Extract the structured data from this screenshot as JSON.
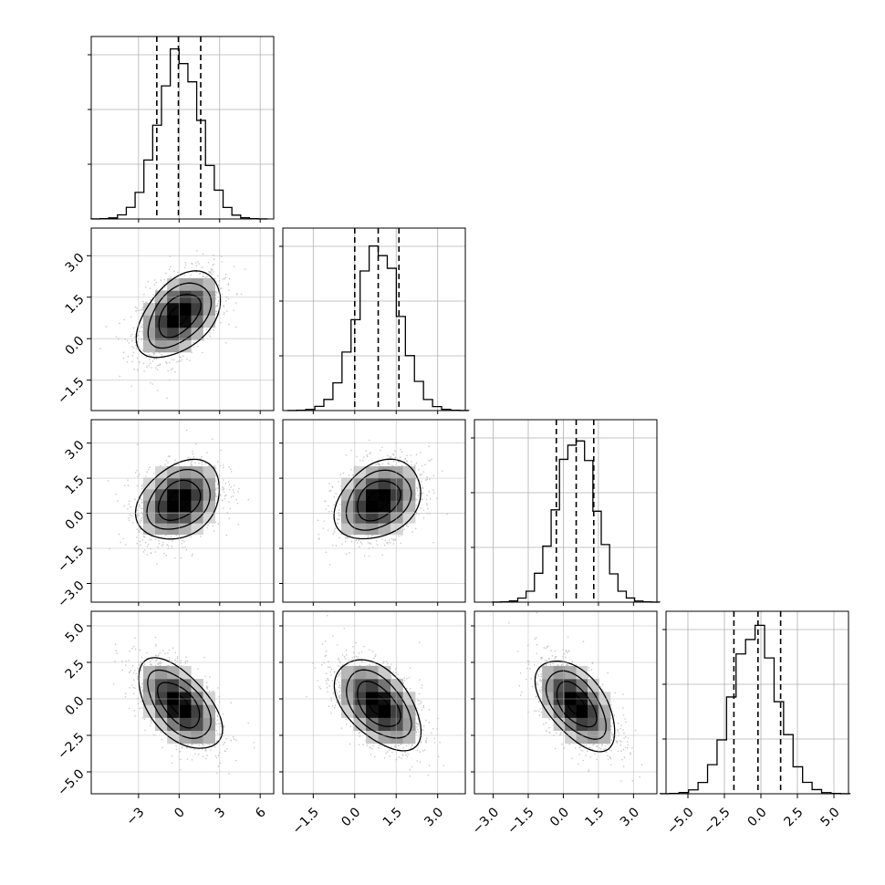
{
  "chart_data": {
    "type": "corner",
    "n_params": 4,
    "grid": true,
    "quantiles": [
      0.16,
      0.5,
      0.84
    ],
    "params": [
      {
        "range": [
          -6.5,
          7.0
        ],
        "ticks": [
          -3,
          0,
          3,
          6
        ],
        "tick_labels": [
          "−3",
          "0",
          "3",
          "6"
        ],
        "marginal": {
          "mean": 0.0,
          "sd": 1.55
        },
        "quantile_lines": [
          -1.65,
          -0.05,
          1.6
        ]
      },
      {
        "range": [
          -2.6,
          4.0
        ],
        "ticks": [
          -1.5,
          0.0,
          1.5,
          3.0
        ],
        "tick_labels": [
          "−1.5",
          "0.0",
          "1.5",
          "3.0"
        ],
        "marginal": {
          "mean": 0.85,
          "sd": 0.78
        },
        "quantile_lines": [
          0.0,
          0.85,
          1.6
        ]
      },
      {
        "range": [
          -3.8,
          4.0
        ],
        "ticks": [
          -3.0,
          -1.5,
          0.0,
          1.5,
          3.0
        ],
        "tick_labels": [
          "−3.0",
          "−1.5",
          "0.0",
          "1.5",
          "3.0"
        ],
        "marginal": {
          "mean": 0.55,
          "sd": 0.85
        },
        "quantile_lines": [
          -0.3,
          0.55,
          1.3
        ]
      },
      {
        "range": [
          -6.5,
          6.0
        ],
        "ticks": [
          -5.0,
          -2.5,
          0.0,
          2.5,
          5.0
        ],
        "tick_labels": [
          "−5.0",
          "−2.5",
          "0.0",
          "2.5",
          "5.0"
        ],
        "marginal": {
          "mean": -0.4,
          "sd": 1.55
        },
        "quantile_lines": [
          -1.85,
          -0.2,
          1.35
        ]
      }
    ],
    "correlations": [
      {
        "i": 1,
        "j": 0,
        "rho": 0.45
      },
      {
        "i": 2,
        "j": 0,
        "rho": 0.3
      },
      {
        "i": 2,
        "j": 1,
        "rho": 0.3
      },
      {
        "i": 3,
        "j": 0,
        "rho": -0.55
      },
      {
        "i": 3,
        "j": 1,
        "rho": -0.5
      },
      {
        "i": 3,
        "j": 2,
        "rho": -0.55
      }
    ],
    "contour_levels_sigma": [
      0.5,
      1.0,
      1.5,
      2.0
    ],
    "colors": {
      "line": "#000000",
      "points": "#9a9a9a",
      "grid": "#b0b0b0",
      "frame": "#000000"
    }
  }
}
